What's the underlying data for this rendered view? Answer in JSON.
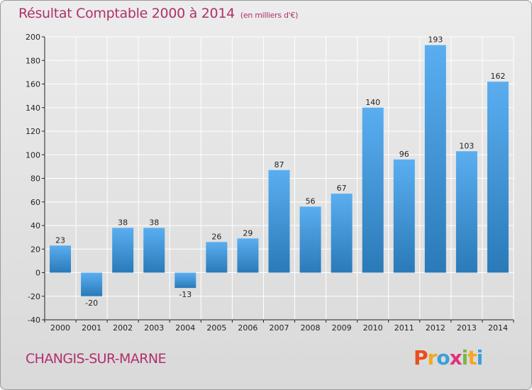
{
  "header": {
    "title": "Résultat Comptable 2000 à 2014",
    "subtitle": "(en milliers d'€)"
  },
  "footer": {
    "commune": "CHANGIS-SUR-MARNE",
    "logo": [
      "P",
      "r",
      "o",
      "x",
      "i",
      "t",
      "i"
    ],
    "logo_colors": [
      "#e94e1b",
      "#f5a623",
      "#3aa0d8",
      "#e2317e",
      "#7ab648",
      "#f5a623",
      "#3aa0d8"
    ]
  },
  "colors": {
    "bar_top": "#5aaef0",
    "bar_bottom": "#2a7ab8",
    "title": "#b0306a",
    "grid": "#ffffff",
    "axis": "#222222"
  },
  "chart_data": {
    "type": "bar",
    "categories": [
      "2000",
      "2001",
      "2002",
      "2003",
      "2004",
      "2005",
      "2006",
      "2007",
      "2008",
      "2009",
      "2010",
      "2011",
      "2012",
      "2013",
      "2014"
    ],
    "values": [
      23,
      -20,
      38,
      38,
      -13,
      26,
      29,
      87,
      56,
      67,
      140,
      96,
      193,
      103,
      162
    ],
    "ylim": [
      -40,
      200
    ],
    "yticks": [
      -40,
      -20,
      0,
      20,
      40,
      60,
      80,
      100,
      120,
      140,
      160,
      180,
      200
    ],
    "grid": true
  }
}
